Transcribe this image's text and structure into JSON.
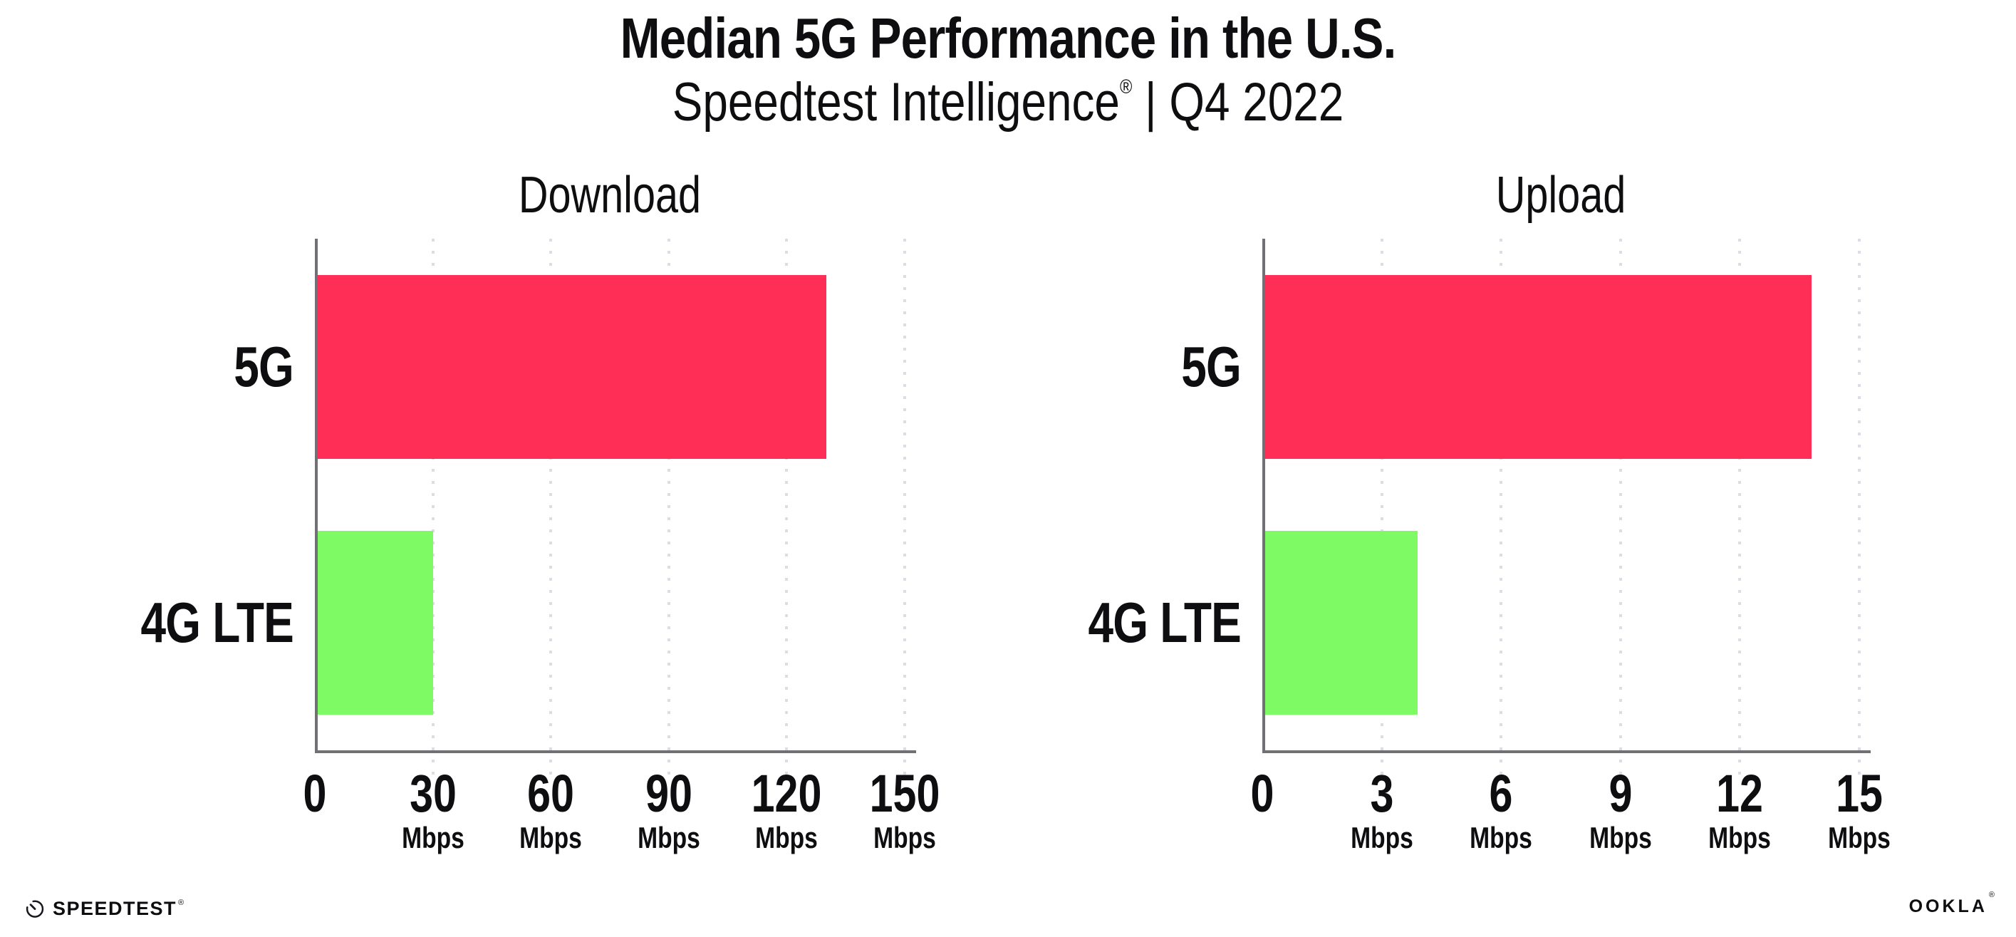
{
  "page": {
    "title": "Median 5G Performance in the U.S.",
    "subtitle": {
      "brand": "Speedtest Intelligence",
      "mark": "®",
      "rest": " | Q4 2022"
    }
  },
  "chart_data": [
    {
      "type": "bar",
      "orientation": "horizontal",
      "title": "Download",
      "categories": [
        "5G",
        "4G LTE"
      ],
      "values": [
        130,
        30
      ],
      "unit": "Mbps",
      "xlim": [
        0,
        150
      ],
      "xticks": [
        0,
        30,
        60,
        90,
        120,
        150
      ],
      "bar_colors": [
        "#ff2e56",
        "#7efb64"
      ],
      "grid": "vertical dotted at each x tick",
      "legend_position": "none"
    },
    {
      "type": "bar",
      "orientation": "horizontal",
      "title": "Upload",
      "categories": [
        "5G",
        "4G LTE"
      ],
      "values": [
        13.8,
        3.9
      ],
      "unit": "Mbps",
      "xlim": [
        0,
        15
      ],
      "xticks": [
        0,
        3,
        6,
        9,
        12,
        15
      ],
      "bar_colors": [
        "#ff2e56",
        "#7efb64"
      ],
      "grid": "vertical dotted at each x tick",
      "legend_position": "none"
    }
  ],
  "footer": {
    "speedtest_label": "SPEEDTEST",
    "speedtest_mark": "®",
    "ookla_label": "OOKLA",
    "ookla_mark": "®"
  },
  "colors": {
    "bar_5g": "#ff2e56",
    "bar_4g_lte": "#7efb64",
    "axis": "#707075",
    "gridline": "#dcdce6",
    "text": "#0e0e10",
    "background": "#ffffff"
  }
}
